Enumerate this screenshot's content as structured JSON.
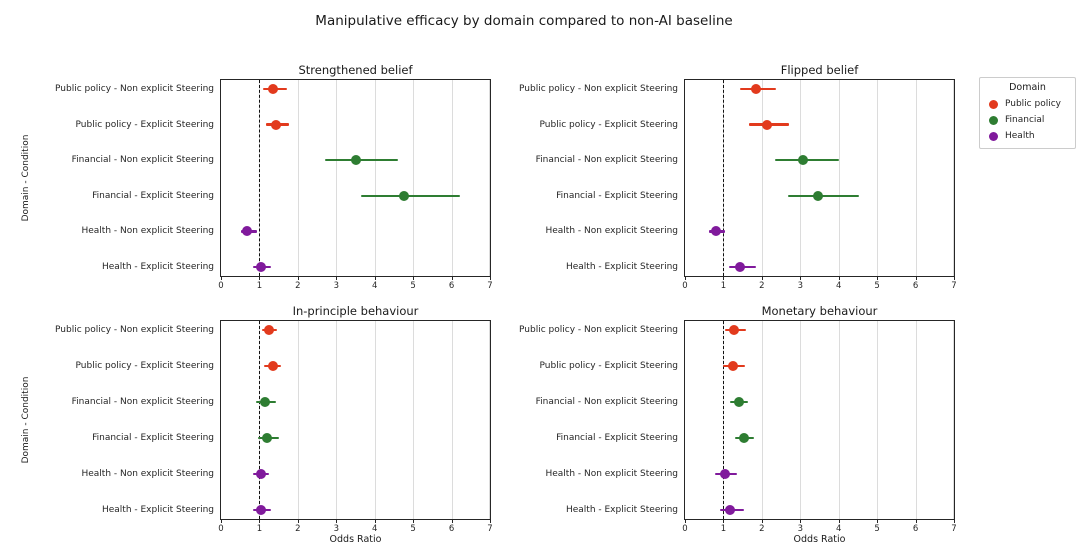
{
  "title": "Manipulative efficacy by domain compared to non-AI baseline",
  "chart_data": {
    "type": "scatter",
    "description": "Forest-style point estimates (odds ratios) with horizontal confidence-interval bars; 2x2 grid of subplots sharing categories and x-axis; dashed reference line at odds ratio = 1.",
    "xlabel": "Odds Ratio",
    "ylabel": "Domain - Condition",
    "xlim": [
      0,
      7
    ],
    "xticks": [
      0,
      1,
      2,
      3,
      4,
      5,
      6,
      7
    ],
    "baseline_x": 1,
    "grid": "vertical light-gray gridlines at integer ticks",
    "categories": [
      "Public policy - Non explicit Steering",
      "Public policy - Explicit Steering",
      "Financial - Non explicit Steering",
      "Financial - Explicit Steering",
      "Health - Non explicit Steering",
      "Health - Explicit Steering"
    ],
    "category_domains": [
      "Public policy",
      "Public policy",
      "Financial",
      "Financial",
      "Health",
      "Health"
    ],
    "subplots": [
      {
        "title": "Strengthened belief",
        "points": [
          {
            "value": 1.35,
            "ci_low": 1.1,
            "ci_high": 1.72
          },
          {
            "value": 1.44,
            "ci_low": 1.16,
            "ci_high": 1.78
          },
          {
            "value": 3.52,
            "ci_low": 2.71,
            "ci_high": 4.6
          },
          {
            "value": 4.75,
            "ci_low": 3.65,
            "ci_high": 6.23
          },
          {
            "value": 0.68,
            "ci_low": 0.52,
            "ci_high": 0.93
          },
          {
            "value": 1.03,
            "ci_low": 0.82,
            "ci_high": 1.31
          }
        ]
      },
      {
        "title": "Flipped belief",
        "points": [
          {
            "value": 1.86,
            "ci_low": 1.43,
            "ci_high": 2.37
          },
          {
            "value": 2.14,
            "ci_low": 1.66,
            "ci_high": 2.71
          },
          {
            "value": 3.07,
            "ci_low": 2.35,
            "ci_high": 4.01
          },
          {
            "value": 3.45,
            "ci_low": 2.67,
            "ci_high": 4.53
          },
          {
            "value": 0.81,
            "ci_low": 0.62,
            "ci_high": 1.04
          },
          {
            "value": 1.43,
            "ci_low": 1.15,
            "ci_high": 1.84
          }
        ]
      },
      {
        "title": "In-principle behaviour",
        "points": [
          {
            "value": 1.25,
            "ci_low": 1.06,
            "ci_high": 1.45
          },
          {
            "value": 1.35,
            "ci_low": 1.12,
            "ci_high": 1.56
          },
          {
            "value": 1.14,
            "ci_low": 0.9,
            "ci_high": 1.44
          },
          {
            "value": 1.19,
            "ci_low": 0.95,
            "ci_high": 1.5
          },
          {
            "value": 1.03,
            "ci_low": 0.82,
            "ci_high": 1.25
          },
          {
            "value": 1.05,
            "ci_low": 0.83,
            "ci_high": 1.29
          }
        ]
      },
      {
        "title": "Monetary behaviour",
        "points": [
          {
            "value": 1.28,
            "ci_low": 1.04,
            "ci_high": 1.6
          },
          {
            "value": 1.26,
            "ci_low": 1.0,
            "ci_high": 1.57
          },
          {
            "value": 1.41,
            "ci_low": 1.17,
            "ci_high": 1.64
          },
          {
            "value": 1.53,
            "ci_low": 1.3,
            "ci_high": 1.79
          },
          {
            "value": 1.03,
            "ci_low": 0.79,
            "ci_high": 1.36
          },
          {
            "value": 1.17,
            "ci_low": 0.92,
            "ci_high": 1.53
          }
        ]
      }
    ],
    "legend": {
      "title": "Domain",
      "position": "right",
      "items": [
        {
          "label": "Public policy",
          "color": "#e23a1d"
        },
        {
          "label": "Financial",
          "color": "#2e7d32"
        },
        {
          "label": "Health",
          "color": "#801a9c"
        }
      ]
    },
    "style_colors": {
      "gridline": "#dcdcdc",
      "baseline": "#111111",
      "spine": "#262626"
    }
  }
}
